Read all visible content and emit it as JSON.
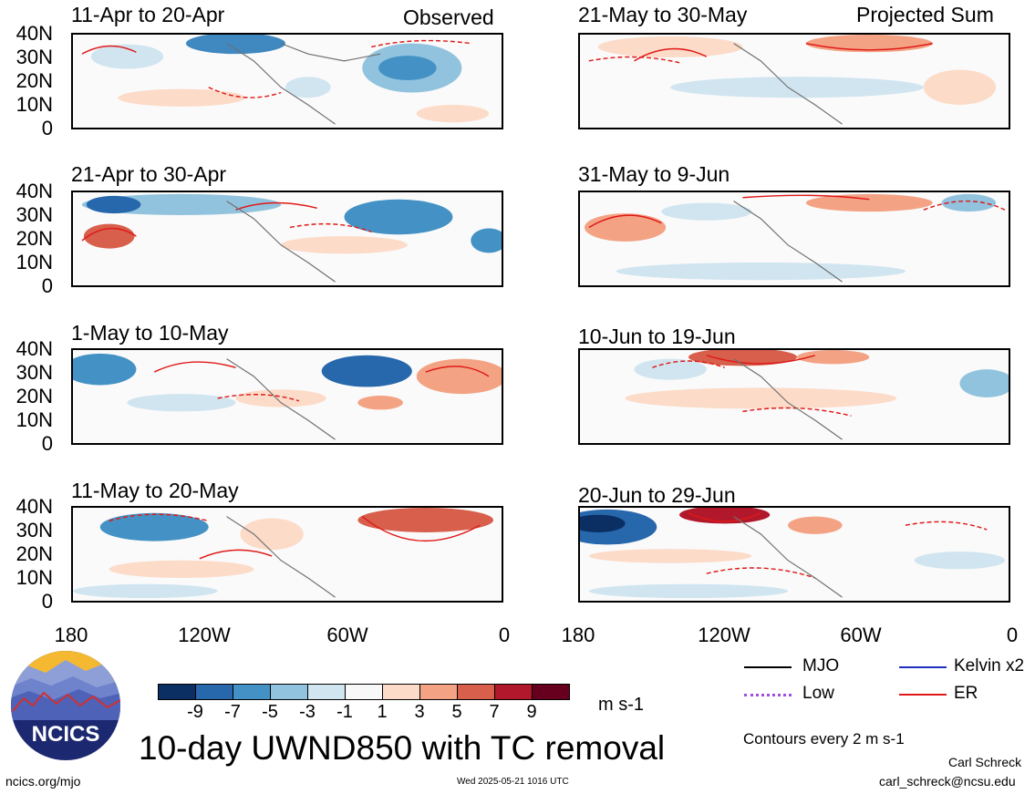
{
  "headers": {
    "observed": "Observed",
    "projected": "Projected Sum"
  },
  "panels": [
    {
      "id": "p1",
      "title": "11-Apr to 20-Apr"
    },
    {
      "id": "p2",
      "title": "21-Apr to 30-Apr"
    },
    {
      "id": "p3",
      "title": "1-May to 10-May"
    },
    {
      "id": "p4",
      "title": "11-May to 20-May"
    },
    {
      "id": "p5",
      "title": "21-May to 30-May"
    },
    {
      "id": "p6",
      "title": "31-May to 9-Jun"
    },
    {
      "id": "p7",
      "title": "10-Jun to 19-Jun"
    },
    {
      "id": "p8",
      "title": "20-Jun to 29-Jun"
    }
  ],
  "y_labels": [
    "40N",
    "30N",
    "20N",
    "10N",
    "0"
  ],
  "x_labels": [
    "180",
    "120W",
    "60W",
    "0"
  ],
  "colorbar": {
    "colors": [
      "#0b2f63",
      "#2767ac",
      "#4492c5",
      "#91c3de",
      "#d0e5f0",
      "#f8f8f8",
      "#fcdbc8",
      "#f3a384",
      "#d75f4c",
      "#b2182b",
      "#67001f"
    ],
    "labels": [
      "-9",
      "-7",
      "-5",
      "-3",
      "-1",
      "1",
      "3",
      "5",
      "7",
      "9"
    ],
    "units": "m s-1"
  },
  "legend": [
    {
      "label": "MJO",
      "color": "#000000",
      "style": "solid"
    },
    {
      "label": "Kelvin x2",
      "color": "#1f30c0",
      "style": "solid"
    },
    {
      "label": "Low",
      "color": "#a04ee0",
      "style": "dotted"
    },
    {
      "label": "ER",
      "color": "#e01818",
      "style": "solid"
    }
  ],
  "contours_note": "Contours every 2 m s-1",
  "main_title": "10-day UWND850 with TC removal",
  "logo_text": "NCICS",
  "footer": {
    "left": "ncics.org/mjo",
    "center": "Wed 2025-05-21 1016 UTC",
    "author": "Carl Schreck",
    "email": "carl_schreck@ncsu.edu"
  }
}
